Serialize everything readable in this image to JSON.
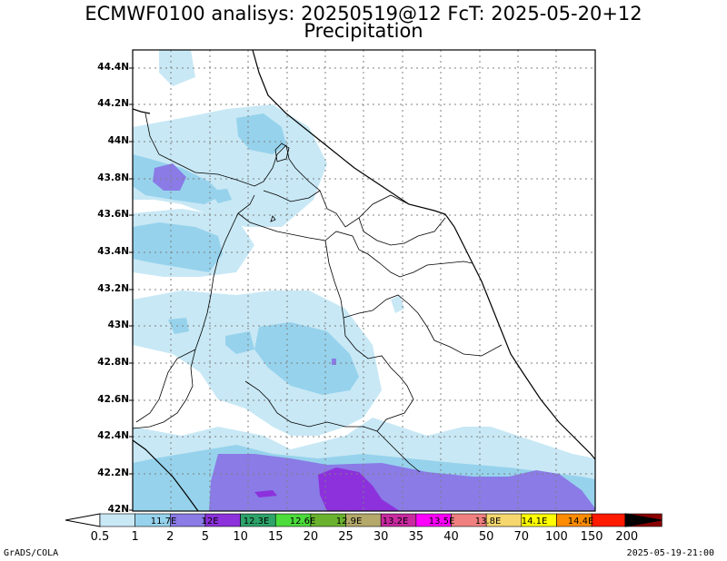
{
  "title_line1": "ECMWF0100 analisys: 20250519@12 FcT: 2025-05-20+12",
  "title_line2": "Precipitation",
  "y_axis_labels": [
    "44.4N",
    "44.2N",
    "44N",
    "43.8N",
    "43.6N",
    "43.4N",
    "43.2N",
    "43N",
    "42.8N",
    "42.6N",
    "42.4N",
    "42.2N",
    "42N"
  ],
  "colorbar": {
    "labels": [
      "0.5",
      "1",
      "2",
      "5",
      "10",
      "15",
      "20",
      "25",
      "30",
      "35",
      "40",
      "50",
      "70",
      "100",
      "150",
      "200"
    ],
    "colors": [
      "#c8e8f5",
      "#96d2ec",
      "#8a7be6",
      "#8c31dc",
      "#2ea36a",
      "#4cdc3c",
      "#6ab22e",
      "#b4a86a",
      "#c82aa0",
      "#ff00ff",
      "#f08080",
      "#f5d76e",
      "#ffff00",
      "#ff8c00",
      "#ff1a00",
      "#8b0000"
    ],
    "embedded_labels": [
      "11.7E",
      "12E",
      "12.3E",
      "12.6E",
      "12.9E",
      "13.2E",
      "13.5E",
      "13.8E",
      "14.1E",
      "14.4E"
    ]
  },
  "footer_left": "GrADS/COLA",
  "footer_right": "2025-05-19-21:00",
  "map": {
    "precip_light": "#c8e8f5",
    "precip_medium": "#96d2ec",
    "precip_heavy": "#8a7be6",
    "precip_intense": "#8c31dc",
    "gridline_color": "#808080",
    "border_color": "#000000"
  }
}
